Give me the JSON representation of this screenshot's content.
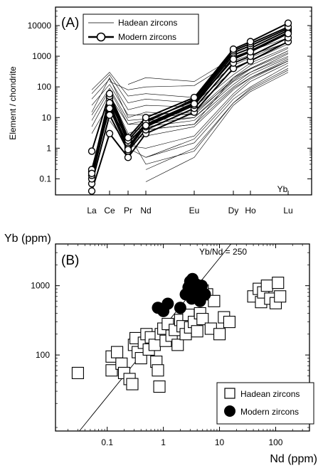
{
  "chart_data": [
    {
      "panel": "(A)",
      "type": "line",
      "ylabel": "Element / chondrite",
      "ylog": true,
      "ylim": [
        0.03,
        40000
      ],
      "y_ticks": [
        0.1,
        1,
        10,
        100,
        1000,
        10000
      ],
      "y_tick_labels": [
        "0.1",
        "1",
        "10",
        "100",
        "1000",
        "10000"
      ],
      "x_categories": [
        "La",
        "Ce",
        "Pr",
        "Nd",
        "Eu",
        "Dy",
        "Ho",
        "Lu"
      ],
      "x_extra_label": "Yb",
      "legend": [
        {
          "name": "Hadean zircons",
          "style": "thin-line"
        },
        {
          "name": "Modern zircons",
          "style": "thick-line-open-circle"
        }
      ],
      "series": [
        {
          "name": "Hadean zircons",
          "lines": [
            {
              "from": "La",
              "values": [
                40,
                180,
                18,
                25,
                22,
                250,
                600,
                2000
              ]
            },
            {
              "from": "La",
              "values": [
                15,
                200,
                10,
                15,
                12,
                180,
                400,
                1500
              ]
            },
            {
              "from": "La",
              "values": [
                60,
                250,
                30,
                40,
                30,
                350,
                700,
                2500
              ]
            },
            {
              "from": "La",
              "values": [
                8,
                80,
                6,
                8,
                10,
                120,
                300,
                1200
              ]
            },
            {
              "from": "La",
              "values": [
                25,
                120,
                12,
                12,
                15,
                200,
                500,
                1800
              ]
            },
            {
              "from": "La",
              "values": [
                5,
                60,
                3,
                5,
                8,
                100,
                250,
                900
              ]
            },
            {
              "from": "La",
              "values": [
                80,
                300,
                50,
                60,
                45,
                500,
                900,
                3000
              ]
            },
            {
              "from": "La",
              "values": [
                3,
                30,
                2,
                4,
                6,
                90,
                200,
                800
              ]
            },
            {
              "from": "La",
              "values": [
                12,
                90,
                8,
                9,
                14,
                160,
                380,
                1300
              ]
            },
            {
              "from": "Ce",
              "values": [
                50,
                6,
                6,
                10,
                150,
                300,
                1000
              ]
            },
            {
              "from": "Ce",
              "values": [
                20,
                2,
                2.5,
                5,
                80,
                200,
                700
              ]
            },
            {
              "from": "Ce",
              "values": [
                150,
                80,
                100,
                110,
                700,
                1100,
                2800
              ]
            },
            {
              "from": "Ce",
              "values": [
                8,
                1.2,
                1,
                2.5,
                60,
                180,
                700
              ]
            },
            {
              "from": "Pr",
              "values": [
                1,
                0.5,
                1.5,
                40,
                100,
                500
              ]
            },
            {
              "from": "Pr",
              "values": [
                120,
                200,
                150,
                900,
                1500,
                4000
              ]
            },
            {
              "from": "Pr",
              "values": [
                3,
                0.3,
                0.8,
                30,
                90,
                400
              ]
            },
            {
              "from": "Nd",
              "values": [
                0.08,
                0.5,
                25,
                70,
                300
              ]
            },
            {
              "from": "Nd",
              "values": [
                0.2,
                1,
                30,
                80,
                350
              ]
            },
            {
              "from": "Nd",
              "values": [
                0.5,
                2,
                50,
                150,
                600
              ]
            },
            {
              "from": "Nd",
              "values": [
                4,
                6,
                200,
                400,
                1500
              ]
            }
          ]
        },
        {
          "name": "Modern zircons",
          "lines": [
            {
              "from": "La",
              "values": [
                0.04,
                3,
                0.5,
                3,
                15,
                400,
                700,
                3000
              ]
            },
            {
              "from": "La",
              "values": [
                0.07,
                12,
                0.8,
                4,
                20,
                600,
                1000,
                4000
              ]
            },
            {
              "from": "La",
              "values": [
                0.1,
                25,
                1.2,
                5,
                25,
                900,
                1500,
                6000
              ]
            },
            {
              "from": "La",
              "values": [
                0.13,
                40,
                1.5,
                6,
                30,
                1100,
                1800,
                7000
              ]
            },
            {
              "from": "La",
              "values": [
                0.17,
                50,
                1.8,
                8,
                35,
                1300,
                2200,
                8000
              ]
            },
            {
              "from": "La",
              "values": [
                0.2,
                30,
                1,
                7,
                40,
                1500,
                2600,
                9000
              ]
            },
            {
              "from": "La",
              "values": [
                0.8,
                60,
                2.2,
                10,
                45,
                1700,
                3000,
                12000
              ]
            },
            {
              "from": "La",
              "values": [
                0.15,
                20,
                0.9,
                5.5,
                28,
                800,
                1400,
                5500
              ]
            }
          ]
        }
      ]
    },
    {
      "panel": "(B)",
      "type": "scatter",
      "xlabel": "Nd (ppm)",
      "ylabel": "Yb (ppm)",
      "xlog": true,
      "ylog": true,
      "xlim": [
        0.012,
        400
      ],
      "ylim": [
        8,
        4000
      ],
      "x_ticks": [
        0.1,
        1,
        10,
        100
      ],
      "x_tick_labels": [
        "0.1",
        "1",
        "10",
        "100"
      ],
      "y_ticks": [
        100,
        1000
      ],
      "y_tick_labels": [
        "100",
        "1000"
      ],
      "reference_line": {
        "label": "Yb/Nd = 250",
        "ratio": 250
      },
      "legend": [
        {
          "name": "Hadean zircons",
          "marker": "open-square"
        },
        {
          "name": "Modern zircons",
          "marker": "filled-circle"
        }
      ],
      "series": [
        {
          "name": "Hadean zircons",
          "points": [
            [
              0.03,
              55
            ],
            [
              0.12,
              95
            ],
            [
              0.12,
              60
            ],
            [
              0.15,
              110
            ],
            [
              0.18,
              75
            ],
            [
              0.2,
              55
            ],
            [
              0.25,
              45
            ],
            [
              0.28,
              38
            ],
            [
              0.3,
              140
            ],
            [
              0.32,
              175
            ],
            [
              0.35,
              110
            ],
            [
              0.4,
              90
            ],
            [
              0.45,
              150
            ],
            [
              0.5,
              200
            ],
            [
              0.55,
              120
            ],
            [
              0.6,
              180
            ],
            [
              0.7,
              140
            ],
            [
              0.75,
              80
            ],
            [
              0.8,
              60
            ],
            [
              0.85,
              35
            ],
            [
              0.9,
              200
            ],
            [
              1.0,
              240
            ],
            [
              1.1,
              160
            ],
            [
              1.2,
              280
            ],
            [
              1.4,
              190
            ],
            [
              1.6,
              230
            ],
            [
              1.8,
              140
            ],
            [
              2.0,
              320
            ],
            [
              2.2,
              260
            ],
            [
              2.5,
              200
            ],
            [
              2.8,
              380
            ],
            [
              3.0,
              250
            ],
            [
              3.5,
              300
            ],
            [
              4,
              220
            ],
            [
              4.5,
              400
            ],
            [
              5,
              330
            ],
            [
              6,
              750
            ],
            [
              7,
              240
            ],
            [
              8,
              600
            ],
            [
              10,
              200
            ],
            [
              12,
              350
            ],
            [
              15,
              300
            ],
            [
              40,
              700
            ],
            [
              50,
              900
            ],
            [
              55,
              580
            ],
            [
              60,
              800
            ],
            [
              70,
              1000
            ],
            [
              80,
              650
            ],
            [
              100,
              560
            ],
            [
              110,
              1100
            ],
            [
              120,
              700
            ],
            [
              5,
              850
            ]
          ]
        },
        {
          "name": "Modern zircons",
          "points": [
            [
              0.8,
              480
            ],
            [
              1.0,
              430
            ],
            [
              1.2,
              550
            ],
            [
              2.0,
              480
            ],
            [
              2.5,
              750
            ],
            [
              2.8,
              950
            ],
            [
              3.0,
              1150
            ],
            [
              3.2,
              650
            ],
            [
              3.5,
              850
            ],
            [
              3.8,
              1050
            ],
            [
              4.0,
              700
            ],
            [
              4.2,
              900
            ],
            [
              4.5,
              600
            ],
            [
              4.8,
              1000
            ],
            [
              5.0,
              800
            ],
            [
              5.5,
              750
            ],
            [
              3.3,
              1250
            ]
          ]
        }
      ]
    }
  ]
}
